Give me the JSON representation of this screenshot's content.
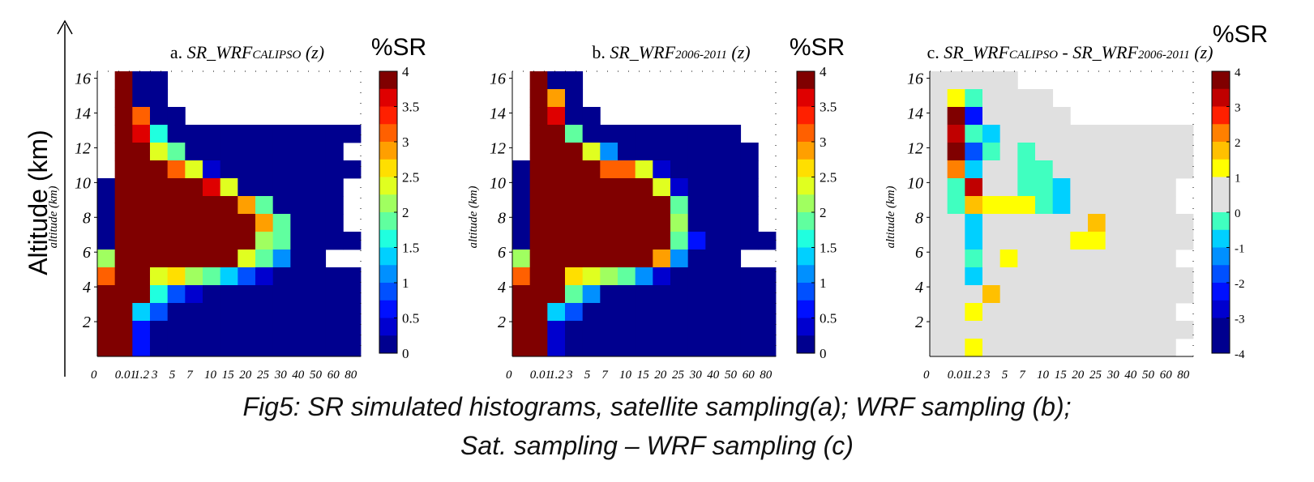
{
  "y_axis_label": "Altitude (km)",
  "colors": {
    "jet": [
      "#00008f",
      "#0000cf",
      "#0010ff",
      "#0050ff",
      "#0090ff",
      "#00d0ff",
      "#20ffdf",
      "#60ff9f",
      "#a0ff60",
      "#e0ff20",
      "#ffdf00",
      "#ff9f00",
      "#ff6000",
      "#ff2000",
      "#df0000",
      "#800000"
    ],
    "diverging": [
      "#00008f",
      "#0010ff",
      "#0050ff",
      "#0090ff",
      "#00d0ff",
      "#40ffc0",
      "#e0e0e0",
      "#e0e0e0",
      "#ffff00",
      "#ffc000",
      "#ff8000",
      "#ff2000",
      "#c00000",
      "#800000"
    ],
    "empty": "#ffffff",
    "gray": "#e0e0e0"
  },
  "caption": {
    "line1": "Fig5: SR simulated histograms, satellite sampling(a); WRF sampling (b);",
    "line2": "Sat. sampling – WRF sampling  (c)"
  },
  "chart_data": [
    {
      "type": "heatmap",
      "id": "a",
      "title_prefix": "a.",
      "title_main": "SR_WRF",
      "title_sub": "CALIPSO",
      "title_suffix": "(z)",
      "cbar_title": "%SR",
      "ylabel": "altitude (km)",
      "ylim": [
        0,
        16.4
      ],
      "yticks": [
        2,
        4,
        6,
        8,
        10,
        12,
        14,
        16
      ],
      "x_tick_labels": [
        "0",
        "0.01",
        "1.2",
        "3",
        "5",
        "7",
        "10",
        "15",
        "20",
        "25",
        "30",
        "40",
        "50",
        "60",
        "80"
      ],
      "colorbar_ticks": [
        "0",
        "0.5",
        "1",
        "1.5",
        "2",
        "2.5",
        "3",
        "3.5",
        "4"
      ],
      "colorbar_range": [
        0,
        4
      ],
      "grid": [
        "XXXXXXXXXXXXXXX",
        "XXXXXXXXXXXXXXX",
        "XXXXXXXXXXXXXXX",
        "XXXXXXXXXXXXXXX",
        "XXXXXXXXXXXXXXX",
        "XXXXXXXXXXXXXXX",
        "XXXXXXXXXXXXXXX",
        "XXXXXXXXXXXXXXX",
        "XXXXXXXXXXXXXXX",
        "XXXXXXXXXXXXXXX",
        "XXXXXXXXXXXXXXX",
        "XXXXXXXXXXXXXXX",
        "XXXXXXXXXXXXXXX",
        "XXXXXXXXXXXXXXX",
        "XXXXXXXXXXXXXXX",
        "XXXXXXXXXXXXXXX"
      ],
      "cells": [
        "...F..........",
        "..FF00.........",
        "..FF00.........",
        "..FFC000.......",
        "..FFF0000000...",
        "..FF9300000000.",
        "..FFF6000000000",
        ".0FFFF710000000",
        ".0FFFFFC70000000",
        "00FFFFFFB60000000",
        "00FFFFFFFF920000",
        "00FFFFFFFFF81000",
        "00FFFFFFFFFF7000",
        "00FFFFFFFFFF8000",
        "00FFFFFFFFFF8000",
        "00FFFFFFFFFF8000"
      ]
    },
    {
      "type": "heatmap",
      "id": "b",
      "title_prefix": "b.",
      "title_main": "SR_WRF",
      "title_sub": "2006-2011",
      "title_suffix": "(z)",
      "cbar_title": "%SR",
      "ylabel": "altitude (km)",
      "ylim": [
        0,
        16.4
      ],
      "yticks": [
        2,
        4,
        6,
        8,
        10,
        12,
        14,
        16
      ],
      "x_tick_labels": [
        "0",
        "0.01",
        "1.2",
        "3",
        "5",
        "7",
        "10",
        "15",
        "20",
        "25",
        "30",
        "40",
        "50",
        "60",
        "80"
      ],
      "colorbar_ticks": [
        "0",
        "0.5",
        "1",
        "1.5",
        "2",
        "2.5",
        "3",
        "3.5",
        "4"
      ],
      "colorbar_range": [
        0,
        4
      ]
    },
    {
      "type": "heatmap",
      "id": "c",
      "title_prefix": "c.",
      "title_main": "SR_WRF",
      "title_sub": "CALIPSO",
      "title_mid": " - SR_WRF",
      "title_sub2": "2006-2011",
      "title_suffix": "(z)",
      "cbar_title": "%SR",
      "ylabel": "altitude (km)",
      "ylim": [
        0,
        16.4
      ],
      "yticks": [
        2,
        4,
        6,
        8,
        10,
        12,
        14,
        16
      ],
      "x_tick_labels": [
        "0",
        "0.01",
        "1.2",
        "3",
        "5",
        "7",
        "10",
        "15",
        "20",
        "25",
        "30",
        "40",
        "50",
        "60",
        "80"
      ],
      "colorbar_ticks": [
        "-4",
        "-3",
        "-2",
        "-1",
        "0",
        "1",
        "2",
        "3",
        "4"
      ],
      "colorbar_range": [
        -4,
        4
      ]
    }
  ]
}
